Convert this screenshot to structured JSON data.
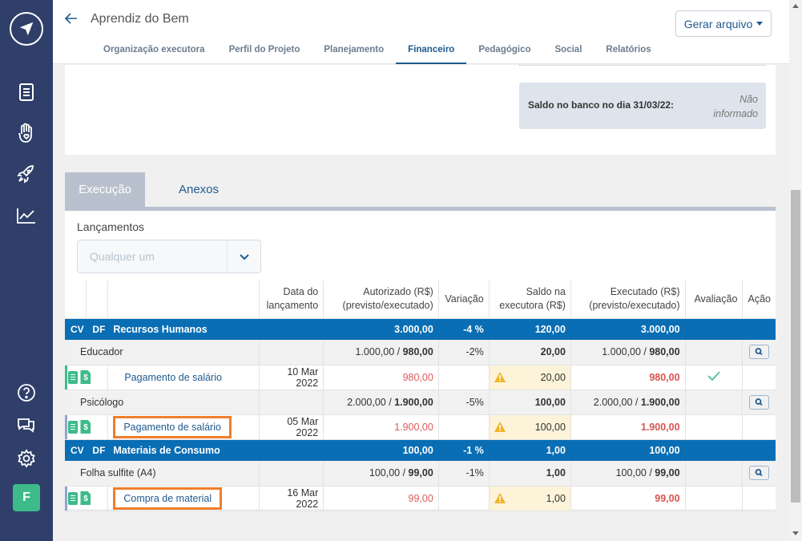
{
  "header": {
    "title": "Aprendiz do Bem",
    "generate_button": "Gerar arquivo",
    "tabs": [
      {
        "label": "Organização executora"
      },
      {
        "label": "Perfil do Projeto"
      },
      {
        "label": "Planejamento"
      },
      {
        "label": "Financeiro"
      },
      {
        "label": "Pedagógico"
      },
      {
        "label": "Social"
      },
      {
        "label": "Relatórios"
      }
    ],
    "active_tab": "Financeiro"
  },
  "sidebar": {
    "avatar_initial": "F",
    "icons": [
      "logo-icon",
      "document-icon",
      "hand-heart-icon",
      "rocket-icon",
      "chart-icon",
      "help-icon",
      "chat-icon",
      "gear-icon"
    ]
  },
  "saldo": {
    "label": "Saldo no banco no dia 31/03/22:",
    "value_line1": "Não",
    "value_line2": "informado"
  },
  "subtabs": {
    "execucao": "Execução",
    "anexos": "Anexos"
  },
  "filter": {
    "label": "Lançamentos",
    "placeholder": "Qualquer um"
  },
  "table": {
    "headers": {
      "data_l1": "Data do",
      "data_l2": "lançamento",
      "autorizado_l1": "Autorizado (R$)",
      "autorizado_l2": "(previsto/executado)",
      "variacao": "Variação",
      "saldo_l1": "Saldo na",
      "saldo_l2": "executora (R$)",
      "executado_l1": "Executado (R$)",
      "executado_l2": "(previsto/executado)",
      "avaliacao": "Avaliação",
      "acao": "Ação"
    },
    "cv": "CV",
    "df": "DF",
    "categories": [
      {
        "name": "Recursos Humanos",
        "autorizado": "3.000,00",
        "variacao": "-4 %",
        "saldo": "120,00",
        "executado": "3.000,00",
        "items": [
          {
            "name": "Educador",
            "aut_prev": "1.000,00 / ",
            "aut_exec": "980,00",
            "variacao": "-2%",
            "saldo": "20,00",
            "exe_prev": "1.000,00 / ",
            "exe_exec": "980,00",
            "entry": {
              "label": "Pagamento de salário",
              "date": "10 Mar 2022",
              "autorizado": "980,00",
              "saldo": "20,00",
              "executado": "980,00",
              "evaluated": true
            }
          },
          {
            "name": "Psicólogo",
            "aut_prev": "2.000,00 / ",
            "aut_exec": "1.900,00",
            "variacao": "-5%",
            "saldo": "100,00",
            "exe_prev": "2.000,00 / ",
            "exe_exec": "1.900,00",
            "entry": {
              "label": "Pagamento de salário",
              "date": "05 Mar 2022",
              "autorizado": "1.900,00",
              "saldo": "100,00",
              "executado": "1.900,00",
              "evaluated": false
            }
          }
        ]
      },
      {
        "name": "Materiais de Consumo",
        "autorizado": "100,00",
        "variacao": "-1 %",
        "saldo": "1,00",
        "executado": "100,00",
        "items": [
          {
            "name": "Folha sulfite (A4)",
            "aut_prev": "100,00 / ",
            "aut_exec": "99,00",
            "variacao": "-1%",
            "saldo": "1,00",
            "exe_prev": "100,00 / ",
            "exe_exec": "99,00",
            "entry": {
              "label": "Compra de material",
              "date": "16 Mar 2022",
              "autorizado": "99,00",
              "saldo": "1,00",
              "executado": "99,00",
              "evaluated": false
            }
          }
        ]
      }
    ]
  },
  "colors": {
    "sidebar": "#2f3f6a",
    "category_row": "#0a6eb4",
    "accent": "#1f5a8f",
    "highlight": "#f07e2c",
    "green": "#3dbb8a"
  }
}
